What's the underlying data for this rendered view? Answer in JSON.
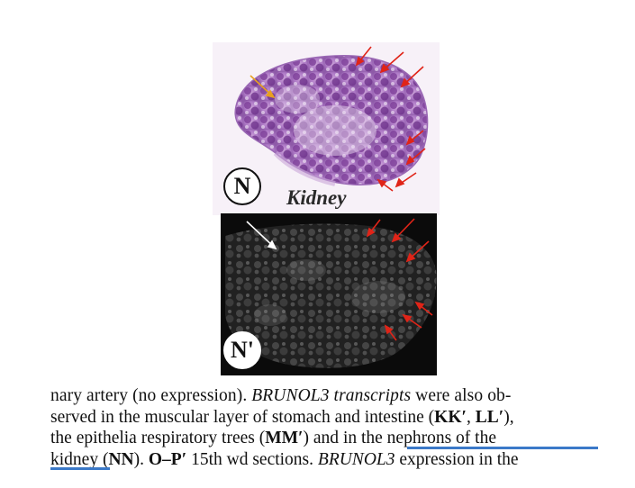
{
  "figure": {
    "title": "Kidney",
    "panel_top_label": "N",
    "panel_bottom_label": "N'"
  },
  "caption": {
    "line1": "nary artery (no expression). BRUNOL3 transcripts were also ob-",
    "line1_parts": [
      "nary artery (no expression). ",
      "BRUNOL3 transcripts",
      " were also ob-"
    ],
    "line2_parts": [
      "served in the muscular layer of stomach and intestine (",
      "KK′",
      ", ",
      "LL′",
      "),"
    ],
    "line3_parts": [
      "the epithelia respiratory trees (",
      "MM′",
      ") and ",
      "in the nephrons of the"
    ],
    "line4_parts": [
      "kidney",
      " (",
      "NN",
      "). ",
      "O–P′",
      " 15th wd sections. ",
      "BRUNOL3",
      " expression in the"
    ]
  },
  "colors": {
    "red_arrow": "#e02418",
    "orange_arrow": "#e8a020",
    "white_arrow": "#ffffff",
    "highlight_underline": "#3b79c8"
  }
}
